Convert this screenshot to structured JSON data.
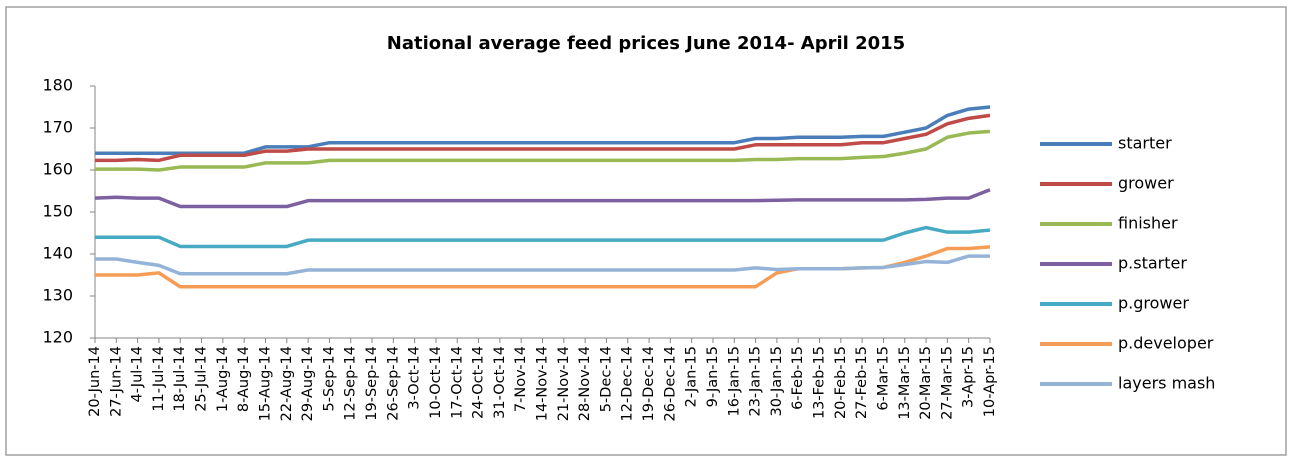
{
  "chart_data": {
    "type": "line",
    "title": "National average feed prices June 2014- April 2015",
    "categories": [
      "20-Jun-14",
      "27-Jun-14",
      "4-Jul-14",
      "11-Jul-14",
      "18-Jul-14",
      "25-Jul-14",
      "1-Aug-14",
      "8-Aug-14",
      "15-Aug-14",
      "22-Aug-14",
      "29-Aug-14",
      "5-Sep-14",
      "12-Sep-14",
      "19-Sep-14",
      "26-Sep-14",
      "3-Oct-14",
      "10-Oct-14",
      "17-Oct-14",
      "24-Oct-14",
      "31-Oct-14",
      "7-Nov-14",
      "14-Nov-14",
      "21-Nov-14",
      "28-Nov-14",
      "5-Dec-14",
      "12-Dec-14",
      "19-Dec-14",
      "26-Dec-14",
      "2-Jan-15",
      "9-Jan-15",
      "16-Jan-15",
      "23-Jan-15",
      "30-Jan-15",
      "6-Feb-15",
      "13-Feb-15",
      "20-Feb-15",
      "27-Feb-15",
      "6-Mar-15",
      "13-Mar-15",
      "20-Mar-15",
      "27-Mar-15",
      "3-Apr-15",
      "10-Apr-15"
    ],
    "series": [
      {
        "name": "starter",
        "color": "#4a7ebb",
        "values": [
          164,
          164,
          164,
          164,
          164,
          164,
          164,
          164,
          165.5,
          165.5,
          165.5,
          166.5,
          166.5,
          166.5,
          166.5,
          166.5,
          166.5,
          166.5,
          166.5,
          166.5,
          166.5,
          166.5,
          166.5,
          166.5,
          166.5,
          166.5,
          166.5,
          166.5,
          166.5,
          166.5,
          166.5,
          167.5,
          167.5,
          167.8,
          167.8,
          167.8,
          168,
          168,
          169,
          170,
          173,
          174.5,
          175
        ]
      },
      {
        "name": "grower",
        "color": "#be4b48",
        "values": [
          162.3,
          162.3,
          162.5,
          162.3,
          163.5,
          163.5,
          163.5,
          163.5,
          164.5,
          164.5,
          165,
          165,
          165,
          165,
          165,
          165,
          165,
          165,
          165,
          165,
          165,
          165,
          165,
          165,
          165,
          165,
          165,
          165,
          165,
          165,
          165,
          166,
          166,
          166,
          166,
          166,
          166.5,
          166.5,
          167.5,
          168.5,
          171,
          172.3,
          173
        ]
      },
      {
        "name": "finisher",
        "color": "#98b954",
        "values": [
          160.2,
          160.2,
          160.2,
          160,
          160.7,
          160.7,
          160.7,
          160.7,
          161.7,
          161.7,
          161.7,
          162.3,
          162.3,
          162.3,
          162.3,
          162.3,
          162.3,
          162.3,
          162.3,
          162.3,
          162.3,
          162.3,
          162.3,
          162.3,
          162.3,
          162.3,
          162.3,
          162.3,
          162.3,
          162.3,
          162.3,
          162.5,
          162.5,
          162.7,
          162.7,
          162.7,
          163,
          163.2,
          164,
          165,
          167.8,
          168.8,
          169.2
        ]
      },
      {
        "name": "p.starter",
        "color": "#7d60a0",
        "values": [
          153.3,
          153.5,
          153.3,
          153.3,
          151.3,
          151.3,
          151.3,
          151.3,
          151.3,
          151.3,
          152.7,
          152.7,
          152.7,
          152.7,
          152.7,
          152.7,
          152.7,
          152.7,
          152.7,
          152.7,
          152.7,
          152.7,
          152.7,
          152.7,
          152.7,
          152.7,
          152.7,
          152.7,
          152.7,
          152.7,
          152.7,
          152.7,
          152.8,
          152.9,
          152.9,
          152.9,
          152.9,
          152.9,
          152.9,
          153,
          153.3,
          153.3,
          155.3
        ]
      },
      {
        "name": "p.grower",
        "color": "#46aac5",
        "values": [
          144,
          144,
          144,
          144,
          141.8,
          141.8,
          141.8,
          141.8,
          141.8,
          141.8,
          143.3,
          143.3,
          143.3,
          143.3,
          143.3,
          143.3,
          143.3,
          143.3,
          143.3,
          143.3,
          143.3,
          143.3,
          143.3,
          143.3,
          143.3,
          143.3,
          143.3,
          143.3,
          143.3,
          143.3,
          143.3,
          143.3,
          143.3,
          143.3,
          143.3,
          143.3,
          143.3,
          143.3,
          145,
          146.3,
          145.2,
          145.2,
          145.7
        ]
      },
      {
        "name": "p.developer",
        "color": "#f59d56",
        "values": [
          135,
          135,
          135,
          135.5,
          132.2,
          132.2,
          132.2,
          132.2,
          132.2,
          132.2,
          132.2,
          132.2,
          132.2,
          132.2,
          132.2,
          132.2,
          132.2,
          132.2,
          132.2,
          132.2,
          132.2,
          132.2,
          132.2,
          132.2,
          132.2,
          132.2,
          132.2,
          132.2,
          132.2,
          132.2,
          132.2,
          132.2,
          135.5,
          136.5,
          136.5,
          136.5,
          136.7,
          136.8,
          138,
          139.5,
          141.3,
          141.3,
          141.7
        ]
      },
      {
        "name": "layers mash",
        "color": "#95b3d7",
        "values": [
          138.8,
          138.8,
          138,
          137.3,
          135.3,
          135.3,
          135.3,
          135.3,
          135.3,
          135.3,
          136.2,
          136.2,
          136.2,
          136.2,
          136.2,
          136.2,
          136.2,
          136.2,
          136.2,
          136.2,
          136.2,
          136.2,
          136.2,
          136.2,
          136.2,
          136.2,
          136.2,
          136.2,
          136.2,
          136.2,
          136.2,
          136.7,
          136.3,
          136.5,
          136.5,
          136.5,
          136.7,
          136.8,
          137.5,
          138.2,
          138,
          139.5,
          139.5
        ]
      }
    ],
    "ylim": [
      120,
      180
    ],
    "yticks": [
      120,
      130,
      140,
      150,
      160,
      170,
      180
    ],
    "legend": "right"
  }
}
